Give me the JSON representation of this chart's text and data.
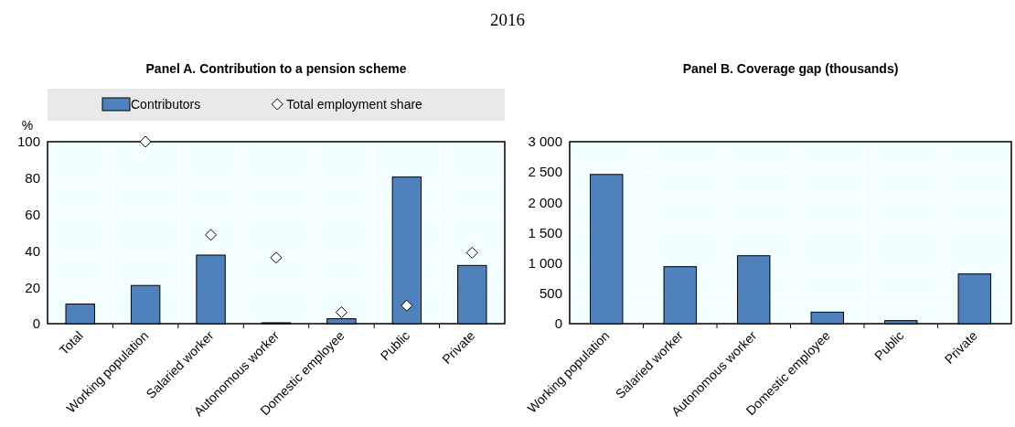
{
  "chart_data": [
    {
      "type": "bar",
      "subtitle": "2016",
      "title": "Panel A. Contribution to a pension scheme",
      "ylabel": "%",
      "categories": [
        "Total",
        "Working population",
        "Salaried worker",
        "Autonomous worker",
        "Domestic employee",
        "Public",
        "Private"
      ],
      "series": [
        {
          "name": "Contributors",
          "color": "#4f81bd",
          "values": [
            10.8,
            21,
            37.7,
            0.5,
            2.7,
            80.6,
            32
          ]
        },
        {
          "name": "Total employment share",
          "type": "scatter",
          "color": "#ffffff",
          "x": [
            "Working population",
            "Salaried worker",
            "Autonomous worker",
            "Domestic employee",
            "Public",
            "Private"
          ],
          "values": [
            100,
            48.8,
            36.3,
            6.3,
            9.9,
            39
          ]
        }
      ],
      "ylim": [
        0,
        100
      ],
      "yticks": [
        0,
        20,
        40,
        60,
        80,
        100
      ],
      "grid": true,
      "legend": "top",
      "marker": "diamond"
    },
    {
      "type": "bar",
      "title": "Panel B. Coverage gap (thousands)",
      "categories": [
        "Working population",
        "Salaried worker",
        "Autonomous worker",
        "Domestic employee",
        "Public",
        "Private"
      ],
      "values": [
        2460,
        940,
        1120,
        190,
        50,
        820
      ],
      "color": "#4f81bd",
      "ylim": [
        0,
        3000
      ],
      "yticks": [
        0,
        {
          "value": 500,
          "label": "500"
        },
        {
          "value": 1000,
          "label": "1 000"
        },
        {
          "value": 1500,
          "label": "1 500"
        },
        {
          "value": 2000,
          "label": "2 000"
        },
        {
          "value": 2500,
          "label": "2 500"
        },
        {
          "value": 3000,
          "label": "3 000"
        }
      ],
      "grid": true
    }
  ]
}
